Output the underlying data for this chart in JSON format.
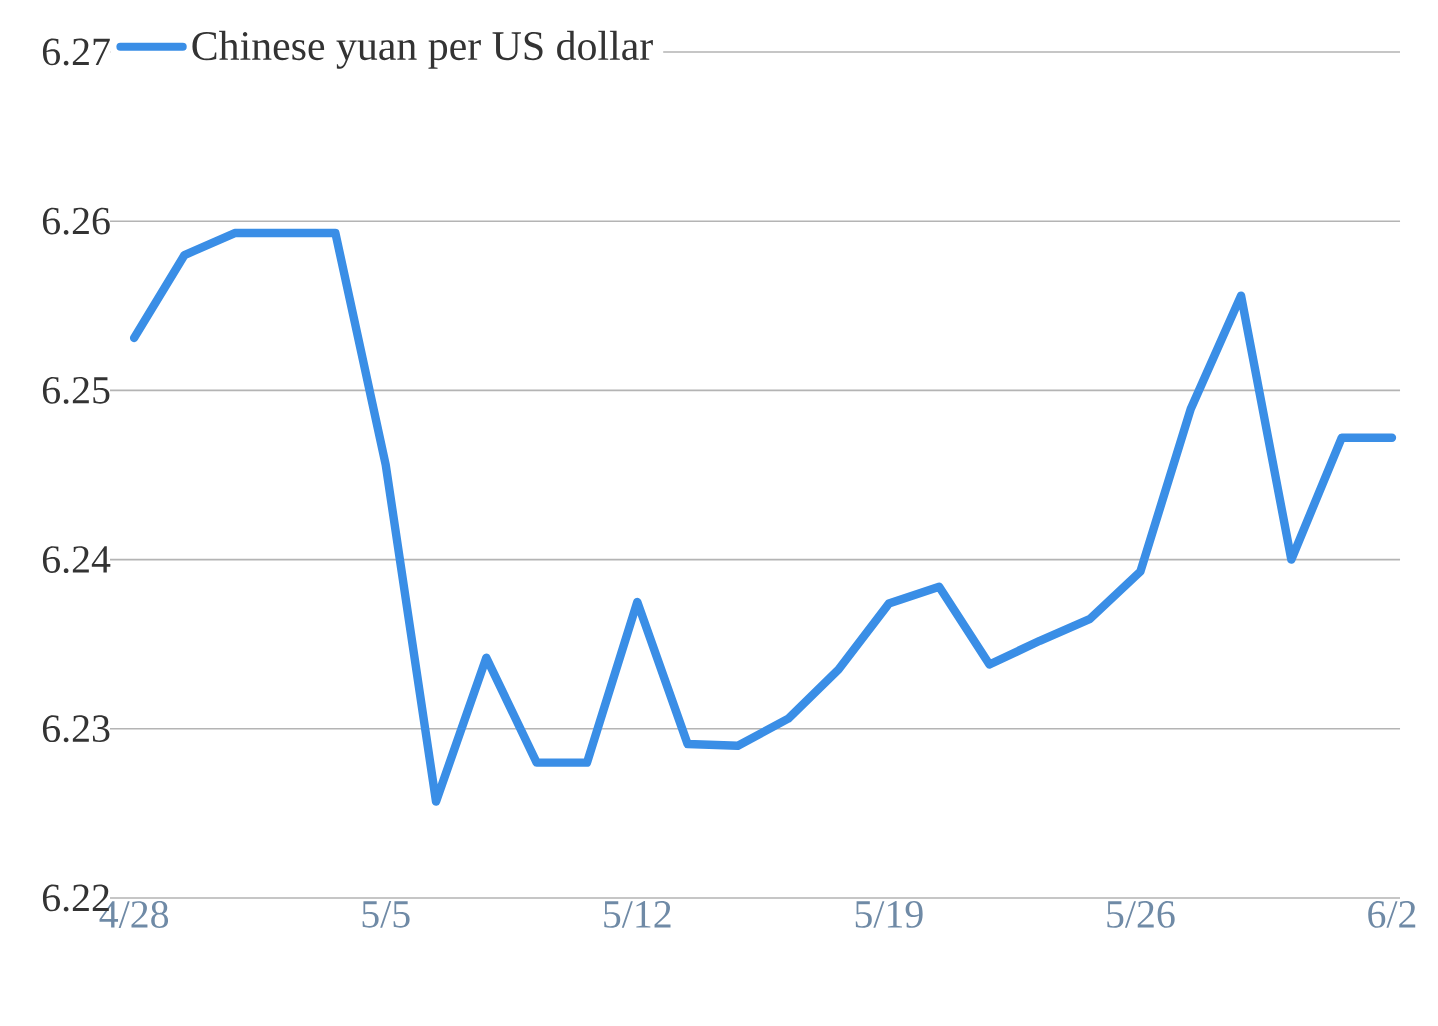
{
  "chart_data": {
    "type": "line",
    "categories": [
      "4/28",
      null,
      null,
      null,
      null,
      "5/5",
      null,
      null,
      null,
      null,
      "5/12",
      null,
      null,
      null,
      null,
      "5/19",
      null,
      null,
      null,
      null,
      "5/26",
      null,
      null,
      null,
      null,
      "6/2"
    ],
    "series": [
      {
        "name": "Chinese yuan per US dollar",
        "color": "#3a8ee6",
        "values": [
          6.2531,
          6.258,
          6.2593,
          6.2593,
          6.2593,
          6.2456,
          6.2257,
          6.2342,
          6.228,
          6.228,
          6.2375,
          6.2291,
          6.229,
          6.2306,
          6.2335,
          6.2374,
          6.2384,
          6.2338,
          6.2352,
          6.2365,
          6.2393,
          6.2489,
          6.2556,
          6.24,
          6.2472,
          6.2472
        ]
      }
    ],
    "ylim": [
      6.22,
      6.27
    ],
    "yticks": [
      6.22,
      6.23,
      6.24,
      6.25,
      6.26,
      6.27
    ],
    "grid": "y",
    "legend": "top left",
    "marker": "none",
    "line_style": "solid"
  }
}
